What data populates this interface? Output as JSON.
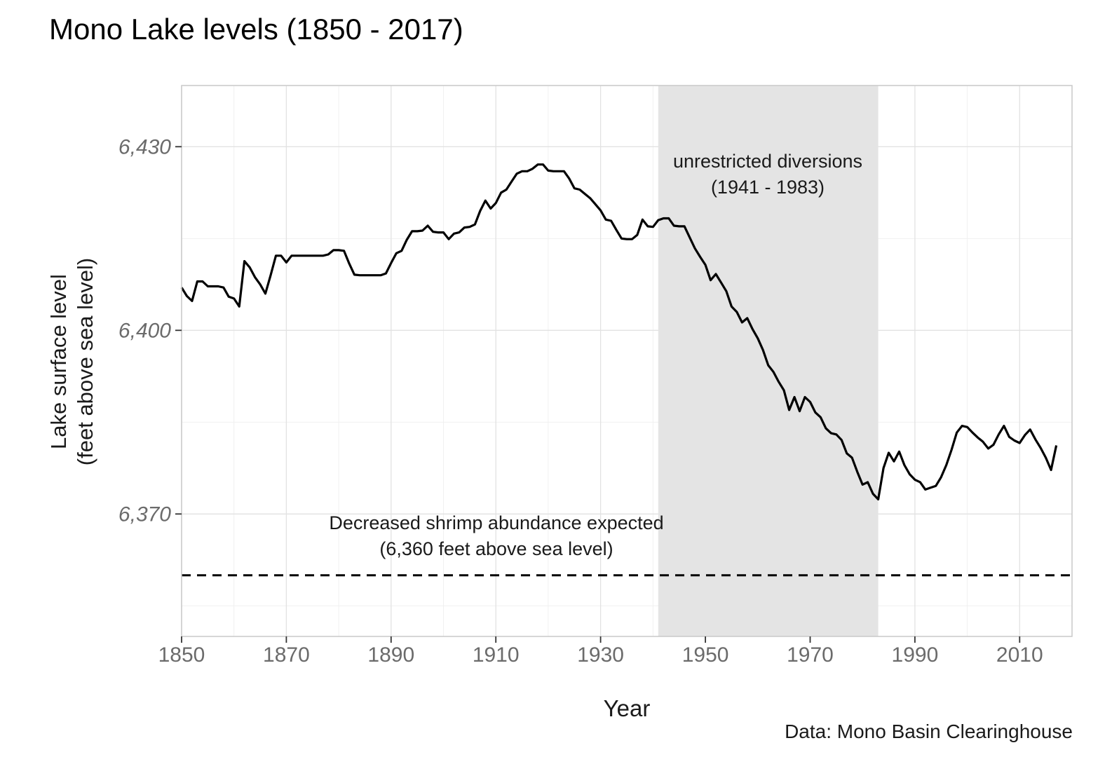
{
  "title": "Mono Lake levels (1850 - 2017)",
  "axes": {
    "y_label_line1": "Lake surface level",
    "y_label_line2": "(feet above sea level)",
    "x_label": "Year"
  },
  "caption": "Data: Mono Basin Clearinghouse",
  "annotations": {
    "diversions_line1": "unrestricted diversions",
    "diversions_line2": "(1941 - 1983)",
    "shrimp_line1": "Decreased shrimp abundance expected",
    "shrimp_line2": "(6,360 feet above sea level)"
  },
  "colors": {
    "line": "#000000",
    "threshold_line": "#000000",
    "shaded_band": "#e4e4e4",
    "grid_major": "#e2e2e2",
    "grid_minor": "#efefef",
    "panel_border": "#c9c9c9",
    "tick_mark": "#333333",
    "tick_text": "#6b6b6b",
    "background": "#ffffff"
  },
  "chart_data": {
    "type": "line",
    "title": "Mono Lake levels (1850 - 2017)",
    "xlabel": "Year",
    "ylabel": "Lake surface level (feet above sea level)",
    "xlim": [
      1850,
      2020
    ],
    "ylim": [
      6350,
      6440
    ],
    "grid": "on",
    "x_start": 1850,
    "x_step": 1,
    "x_end": 2017,
    "values": [
      6407.0,
      6405.6,
      6404.8,
      6408.0,
      6408.0,
      6407.2,
      6407.2,
      6407.2,
      6407.0,
      6405.5,
      6405.2,
      6403.9,
      6411.3,
      6410.3,
      6408.7,
      6407.5,
      6406.0,
      6409.0,
      6412.2,
      6412.2,
      6411.1,
      6412.2,
      6412.2,
      6412.2,
      6412.2,
      6412.2,
      6412.2,
      6412.2,
      6412.4,
      6413.1,
      6413.1,
      6413.0,
      6410.9,
      6409.1,
      6409.0,
      6409.0,
      6409.0,
      6409.0,
      6409.0,
      6409.3,
      6411.0,
      6412.6,
      6413.0,
      6414.8,
      6416.2,
      6416.2,
      6416.3,
      6417.1,
      6416.1,
      6416.0,
      6416.0,
      6414.9,
      6415.8,
      6416.0,
      6416.8,
      6416.9,
      6417.3,
      6419.5,
      6421.2,
      6419.9,
      6420.8,
      6422.5,
      6423.0,
      6424.3,
      6425.6,
      6426.0,
      6426.0,
      6426.4,
      6427.1,
      6427.1,
      6426.1,
      6426.0,
      6426.0,
      6426.0,
      6424.8,
      6423.2,
      6423.0,
      6422.3,
      6421.6,
      6420.6,
      6419.6,
      6418.1,
      6417.9,
      6416.4,
      6415.0,
      6414.9,
      6414.9,
      6415.6,
      6418.1,
      6417.0,
      6416.9,
      6418.0,
      6418.3,
      6418.3,
      6417.1,
      6417.0,
      6417.0,
      6415.2,
      6413.4,
      6412.0,
      6410.7,
      6408.2,
      6409.2,
      6407.8,
      6406.4,
      6403.9,
      6403.0,
      6401.3,
      6402.0,
      6400.2,
      6398.7,
      6396.8,
      6394.3,
      6393.2,
      6391.6,
      6390.2,
      6387.0,
      6389.1,
      6386.8,
      6389.1,
      6388.3,
      6386.6,
      6385.8,
      6384.0,
      6383.2,
      6383.0,
      6382.1,
      6379.9,
      6379.2,
      6376.9,
      6374.8,
      6375.2,
      6373.3,
      6372.4,
      6377.5,
      6380.0,
      6378.6,
      6380.2,
      6378.0,
      6376.5,
      6375.6,
      6375.2,
      6374.0,
      6374.3,
      6374.6,
      6376.0,
      6378.0,
      6380.5,
      6383.3,
      6384.4,
      6384.2,
      6383.3,
      6382.5,
      6381.8,
      6380.7,
      6381.3,
      6383.0,
      6384.4,
      6382.6,
      6382.0,
      6381.6,
      6382.9,
      6383.8,
      6382.2,
      6380.8,
      6379.2,
      6377.2,
      6381.2
    ],
    "x_ticks": [
      {
        "value": 1850,
        "label": "1850"
      },
      {
        "value": 1870,
        "label": "1870"
      },
      {
        "value": 1890,
        "label": "1890"
      },
      {
        "value": 1910,
        "label": "1910"
      },
      {
        "value": 1930,
        "label": "1930"
      },
      {
        "value": 1950,
        "label": "1950"
      },
      {
        "value": 1970,
        "label": "1970"
      },
      {
        "value": 1990,
        "label": "1990"
      },
      {
        "value": 2010,
        "label": "2010"
      }
    ],
    "y_ticks": [
      {
        "value": 6370,
        "label": "6,370"
      },
      {
        "value": 6400,
        "label": "6,400"
      },
      {
        "value": 6430,
        "label": "6,430"
      }
    ],
    "x_minor": [
      1860,
      1880,
      1900,
      1920,
      1940,
      1960,
      1980,
      2000,
      2020
    ],
    "y_minor": [
      6355,
      6385,
      6415
    ],
    "shaded_region": {
      "x0": 1941,
      "x1": 1983,
      "label": "unrestricted diversions (1941 - 1983)"
    },
    "threshold_line": {
      "y": 6360,
      "style": "dashed",
      "label": "Decreased shrimp abundance expected (6,360 feet above sea level)"
    },
    "legend": "none"
  }
}
